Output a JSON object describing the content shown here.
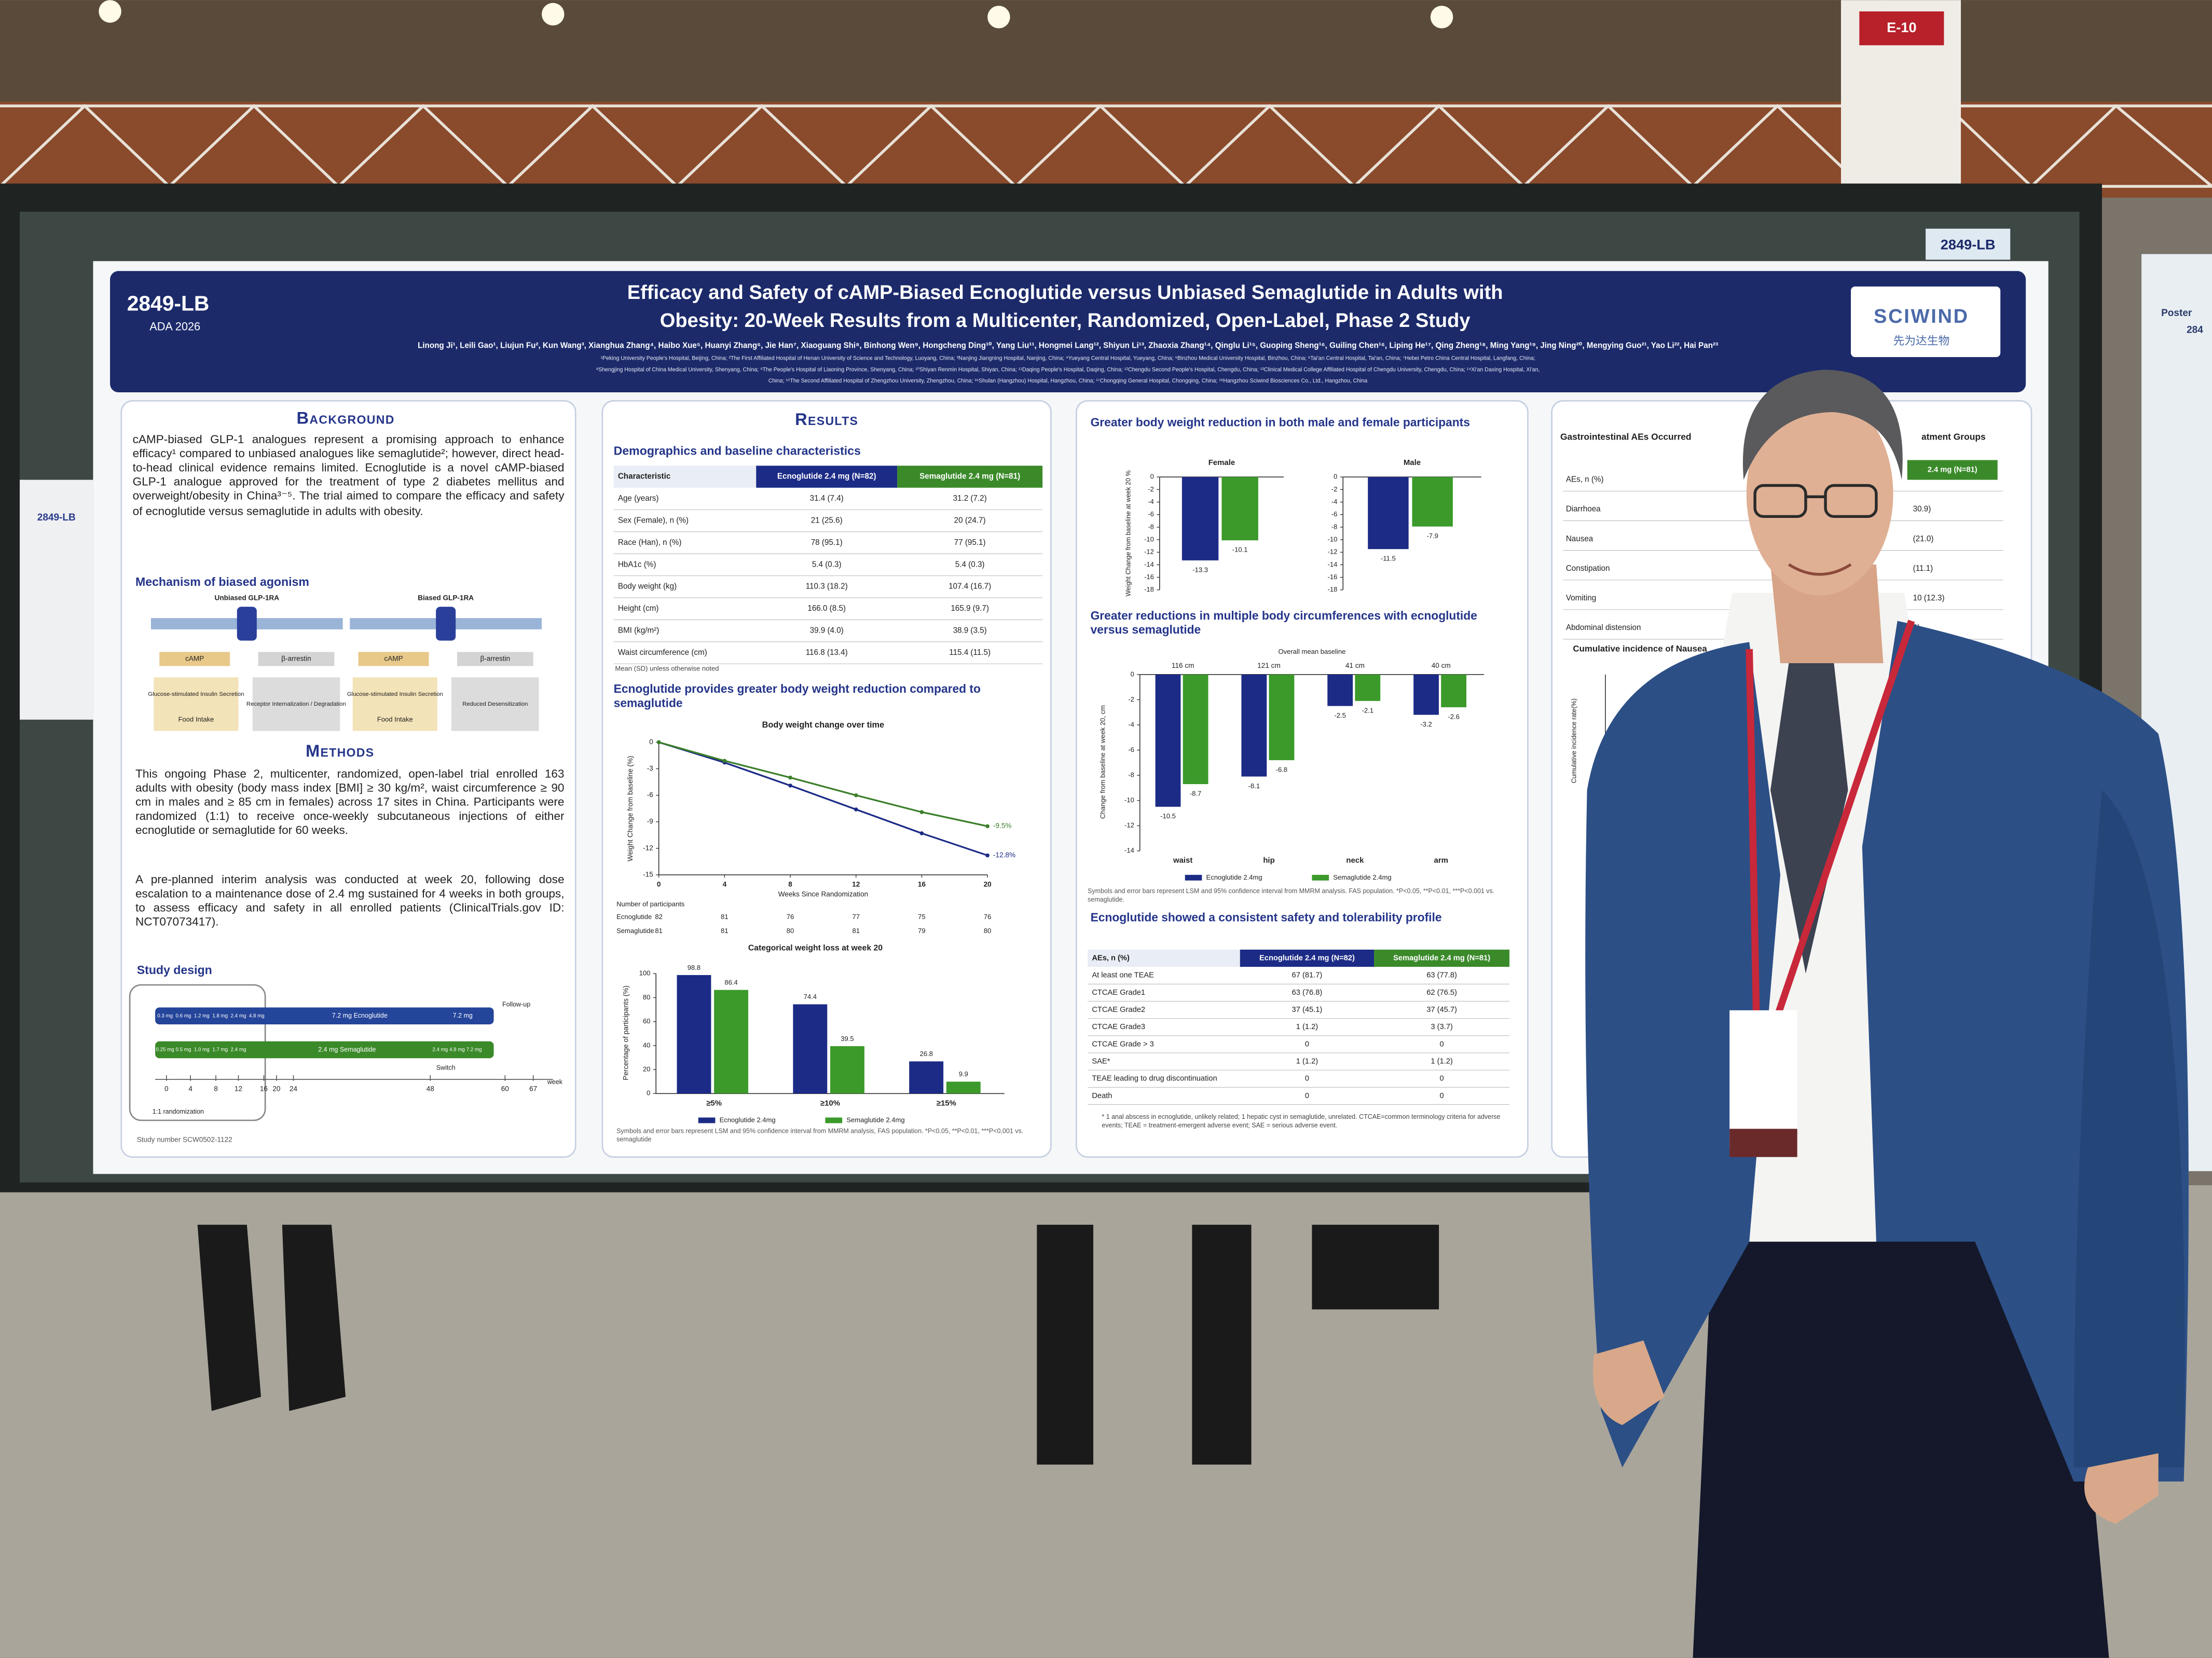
{
  "venue": {
    "pillar_sign": "E-10",
    "board_label": "2849-LB",
    "left_poster_id": "2849-LB",
    "right_poster_title": "Poster",
    "right_poster_id": "284"
  },
  "header": {
    "poster_id": "2849-LB",
    "conference": "ADA 2026",
    "title_line1": "Efficacy and Safety of cAMP-Biased Ecnoglutide versus Unbiased Semaglutide in Adults with",
    "title_line2": "Obesity: 20-Week Results from a Multicenter, Randomized, Open-Label, Phase 2 Study",
    "authors": "Linong Ji¹, Leili Gao¹, Liujun Fu², Kun Wang³, Xianghua Zhang⁴, Haibo Xue⁵, Huanyi Zhang⁶, Jie Han⁷, Xiaoguang Shi⁸, Binhong Wen⁹, Hongcheng Ding¹⁰, Yang Liu¹¹, Hongmei Lang¹², Shiyun Li¹³, Zhaoxia Zhang¹⁴, Qinglu Li¹⁵, Guoping Sheng¹⁶, Guiling Chen¹⁶, Liping He¹⁷, Qing Zheng¹⁸, Ming Yang¹⁹, Jing Ning²⁰, Mengying Guo²¹, Yao Li²², Hai Pan²³",
    "affiliations_line1": "¹Peking University People's Hospital, Beijing, China; ²The First Affiliated Hospital of Henan University of Science and Technology, Luoyang, China; ³Nanjing Jiangning Hospital, Nanjing, China; ⁴Yueyang Central Hospital, Yueyang, China; ⁵Binzhou Medical University Hospital, Binzhou, China; ⁶Tai'an Central Hospital, Tai'an, China; ⁷Hebei Petro China Central Hospital, Langfang, China;",
    "affiliations_line2": "⁸Shengjing Hospital of China Medical University, Shenyang, China; ⁹The People's Hospital of Liaoning Province, Shenyang, China; ¹⁰Shiyan Renmin Hospital, Shiyan, China; ¹¹Daqing People's Hospital, Daqing, China; ¹²Chengdu Second People's Hospital, Chengdu, China; ¹³Clinical Medical College Affiliated Hospital of Chengdu University, Chengdu, China; ¹⁴Xi'an Daxing Hospital, Xi'an,",
    "affiliations_line3": "China; ¹⁵The Second Affiliated Hospital of Zhengzhou University, Zhengzhou, China; ¹⁶Shulan (Hangzhou) Hospital, Hangzhou, China; ¹⁷Chongqing General Hospital, Chongqing, China; ¹⁸Hangzhou Sciwind Biosciences Co., Ltd., Hangzhou, China",
    "logo": "SCIWIND",
    "logo_cn": "先为达生物"
  },
  "background": {
    "heading": "Background",
    "text": "cAMP-biased GLP-1 analogues represent a promising approach to enhance efficacy¹ compared to unbiased analogues like semaglutide²; however, direct head-to-head clinical evidence remains limited. Ecnoglutide is a novel cAMP-biased GLP-1 analogue approved for the treatment of type 2 diabetes mellitus and overweight/obesity in China³⁻⁵. The trial aimed to compare the efficacy and safety of ecnoglutide versus semaglutide in adults with obesity.",
    "mechanism_heading": "Mechanism of biased agonism",
    "unbiased": {
      "label": "Unbiased GLP-1RA",
      "camp": "cAMP",
      "arrestin": "β-arrestin",
      "effect1": "Glucose-stimulated Insulin Secretion",
      "effect2": "Food Intake",
      "effect3": "Receptor Internalization / Degradation"
    },
    "biased": {
      "label": "Biased GLP-1RA",
      "camp": "cAMP",
      "arrestin": "β-arrestin",
      "effect1": "Glucose-stimulated Insulin Secretion",
      "effect2": "Food Intake",
      "effect3": "Reduced Desensitization"
    }
  },
  "methods": {
    "heading": "Methods",
    "text1": "This ongoing Phase 2, multicenter, randomized, open-label trial enrolled 163 adults with obesity (body mass index [BMI] ≥ 30 kg/m², waist circumference ≥ 90 cm in males and ≥ 85 cm in females) across 17 sites in China. Participants were randomized (1:1) to receive once-weekly subcutaneous injections of either ecnoglutide or semaglutide for 60 weeks.",
    "text2": "A pre-planned interim analysis was conducted at week 20, following dose escalation to a maintenance dose of 2.4 mg sustained for 4 weeks in both groups, to assess efficacy and safety in all enrolled patients (ClinicalTrials.gov ID: NCT07073417).",
    "study_design_heading": "Study design",
    "ecno_steps": [
      "0.3 mg",
      "0.6 mg",
      "1.2 mg",
      "1.8 mg",
      "2.4 mg",
      "4.8 mg"
    ],
    "ecno_main": "7.2 mg Ecnoglutide",
    "ecno_tail": "7.2 mg",
    "sema_steps": [
      "0.25 mg",
      "0.5 mg",
      "1.0 mg",
      "1.7 mg",
      "2.4 mg"
    ],
    "sema_main": "2.4 mg Semaglutide",
    "sema_tail": [
      "2.4 mg",
      "4.8 mg",
      "7.2 mg"
    ],
    "follow_up": "Follow-up",
    "switch": "Switch",
    "randomization": "1:1 randomization",
    "weeks": [
      0,
      4,
      8,
      12,
      16,
      20,
      24,
      48,
      60,
      67
    ],
    "week_label": "week",
    "study_number": "Study number SCW0502-1122"
  },
  "results": {
    "heading": "Results",
    "demographics": {
      "heading": "Demographics and baseline characteristics",
      "columns": [
        "Characteristic",
        "Ecnoglutide 2.4 mg (N=82)",
        "Semaglutide 2.4 mg (N=81)"
      ],
      "rows": [
        [
          "Age (years)",
          "31.4 (7.4)",
          "31.2 (7.2)"
        ],
        [
          "Sex (Female), n (%)",
          "21 (25.6)",
          "20 (24.7)"
        ],
        [
          "Race (Han), n (%)",
          "78 (95.1)",
          "77 (95.1)"
        ],
        [
          "HbA1c (%)",
          "5.4 (0.3)",
          "5.4 (0.3)"
        ],
        [
          "Body weight (kg)",
          "110.3 (18.2)",
          "107.4 (16.7)"
        ],
        [
          "Height (cm)",
          "166.0 (8.5)",
          "165.9 (9.7)"
        ],
        [
          "BMI (kg/m²)",
          "39.9 (4.0)",
          "38.9 (3.5)"
        ],
        [
          "Waist circumference (cm)",
          "116.8 (13.4)",
          "115.4 (11.5)"
        ]
      ],
      "note": "Mean (SD) unless otherwise noted"
    },
    "weight_heading": "Ecnoglutide provides greater body weight reduction compared to semaglutide",
    "weight_chart": {
      "type": "line",
      "title": "Body weight change over time",
      "x_label": "Weeks Since Randomization",
      "y_label": "Weight Change from baseline (%)",
      "x": [
        0,
        4,
        8,
        12,
        16,
        20
      ],
      "xlim": [
        0,
        20
      ],
      "xticks": [
        0,
        4,
        8,
        12,
        16,
        20
      ],
      "ylim": [
        -15,
        0
      ],
      "yticks": [
        0,
        -3,
        -6,
        -9,
        -12,
        -15
      ],
      "series": [
        {
          "name": "Ecnoglutide",
          "color": "#1c2b86",
          "values": [
            0,
            -2.3,
            -4.9,
            -7.6,
            -10.3,
            -12.8
          ],
          "value_labels": [
            null,
            null,
            null,
            null,
            null,
            "-12.8%"
          ],
          "at_risk": [
            82,
            81,
            76,
            77,
            75,
            76
          ]
        },
        {
          "name": "Semaglutide",
          "color": "#3b7f2a",
          "values": [
            0,
            -2.1,
            -4.0,
            -6.0,
            -7.9,
            -9.5
          ],
          "value_labels": [
            null,
            null,
            null,
            null,
            null,
            "-9.5%"
          ],
          "at_risk": [
            81,
            81,
            80,
            81,
            79,
            80
          ]
        }
      ],
      "at_risk_heading": "Number of participants"
    },
    "categorical_chart": {
      "type": "bar",
      "title": "Categorical weight loss at week 20",
      "y_label": "Percentage of participants (%)",
      "categories": [
        "≥5%",
        "≥10%",
        "≥15%"
      ],
      "ylim": [
        0,
        100
      ],
      "yticks": [
        0,
        20,
        40,
        60,
        80,
        100
      ],
      "series": [
        {
          "name": "Ecnoglutide 2.4mg",
          "color": "#1c2b86",
          "values": [
            98.8,
            74.4,
            26.8
          ]
        },
        {
          "name": "Semaglutide 2.4mg",
          "color": "#3b9a2a",
          "values": [
            86.4,
            39.5,
            9.9
          ]
        }
      ],
      "footnote": "Symbols and error bars represent LSM and 95% confidence interval from MMRM analysis, FAS population. *P<0.05, **P<0.01, ***P<0.001 vs. semaglutide"
    }
  },
  "column3": {
    "sex_heading": "Greater body weight reduction in both male and female participants",
    "sex_chart": {
      "type": "bar",
      "y_label": "Weight Change from baseline at week 20 %",
      "categories": [
        "Female",
        "Male"
      ],
      "ylim": [
        -18,
        0
      ],
      "yticks": [
        0,
        -2,
        -4,
        -6,
        -8,
        -10,
        -12,
        -14,
        -16,
        -18
      ],
      "series": [
        {
          "color": "#1c2b86",
          "values": [
            -13.3,
            -11.5
          ]
        },
        {
          "color": "#3b9a2a",
          "values": [
            -10.1,
            -7.9
          ]
        }
      ]
    },
    "circ_heading": "Greater reductions in multiple body circumferences with ecnoglutide versus semaglutide",
    "circ_chart": {
      "type": "bar",
      "subtitle": "Overall mean baseline",
      "y_label": "Change from baseline at week 20, cm",
      "categories": [
        "waist",
        "hip",
        "neck",
        "arm"
      ],
      "baselines": [
        "116 cm",
        "121 cm",
        "41 cm",
        "40 cm"
      ],
      "ylim": [
        -14,
        0
      ],
      "yticks": [
        0,
        -2,
        -4,
        -6,
        -8,
        -10,
        -12,
        -14
      ],
      "series": [
        {
          "name": "Ecnoglutide 2.4mg",
          "color": "#1c2b86",
          "values": [
            -10.5,
            -8.1,
            -2.5,
            -3.2
          ]
        },
        {
          "name": "Semaglutide 2.4mg",
          "color": "#3b9a2a",
          "values": [
            -8.7,
            -6.8,
            -2.1,
            -2.6
          ]
        }
      ],
      "footnote": "Symbols and error bars represent LSM and 95% confidence interval from MMRM analysis. FAS population. *P<0.05, **P<0.01, ***P<0.001 vs. semaglutide."
    },
    "safety": {
      "heading": "Ecnoglutide showed a consistent safety and tolerability profile",
      "columns": [
        "AEs, n (%)",
        "Ecnoglutide 2.4 mg (N=82)",
        "Semaglutide 2.4 mg (N=81)"
      ],
      "rows": [
        [
          "At least one TEAE",
          "67 (81.7)",
          "63 (77.8)"
        ],
        [
          "CTCAE Grade1",
          "63 (76.8)",
          "62 (76.5)"
        ],
        [
          "CTCAE Grade2",
          "37 (45.1)",
          "37 (45.7)"
        ],
        [
          "CTCAE Grade3",
          "1 (1.2)",
          "3 (3.7)"
        ],
        [
          "CTCAE Grade > 3",
          "0",
          "0"
        ],
        [
          "SAE*",
          "1 (1.2)",
          "1 (1.2)"
        ],
        [
          "TEAE leading to drug discontinuation",
          "0",
          "0"
        ],
        [
          "Death",
          "0",
          "0"
        ]
      ],
      "footnote": "* 1 anal abscess in ecnoglutide, unlikely related; 1 hepatic cyst in semaglutide, unrelated. CTCAE=common terminology criteria for adverse events; TEAE = treatment-emergent adverse event; SAE = serious adverse event."
    }
  },
  "column4": {
    "heading": "Gastrointestinal AEs Occurred",
    "heading_right": "atment Groups",
    "column_header": "2.4 mg (N=81)",
    "rows": [
      "AEs, n (%)",
      "Diarrhoea",
      "Nausea",
      "Constipation",
      "Vomiting",
      "Abdominal distension"
    ],
    "values": [
      "",
      "30.9)",
      "(21.0)",
      "(11.1)",
      "10 (12.3)",
      "9)"
    ],
    "cumulative_heading": "Cumulative incidence of Nausea",
    "cumulative_y_label": "Cumulative incidence rate(%)"
  }
}
